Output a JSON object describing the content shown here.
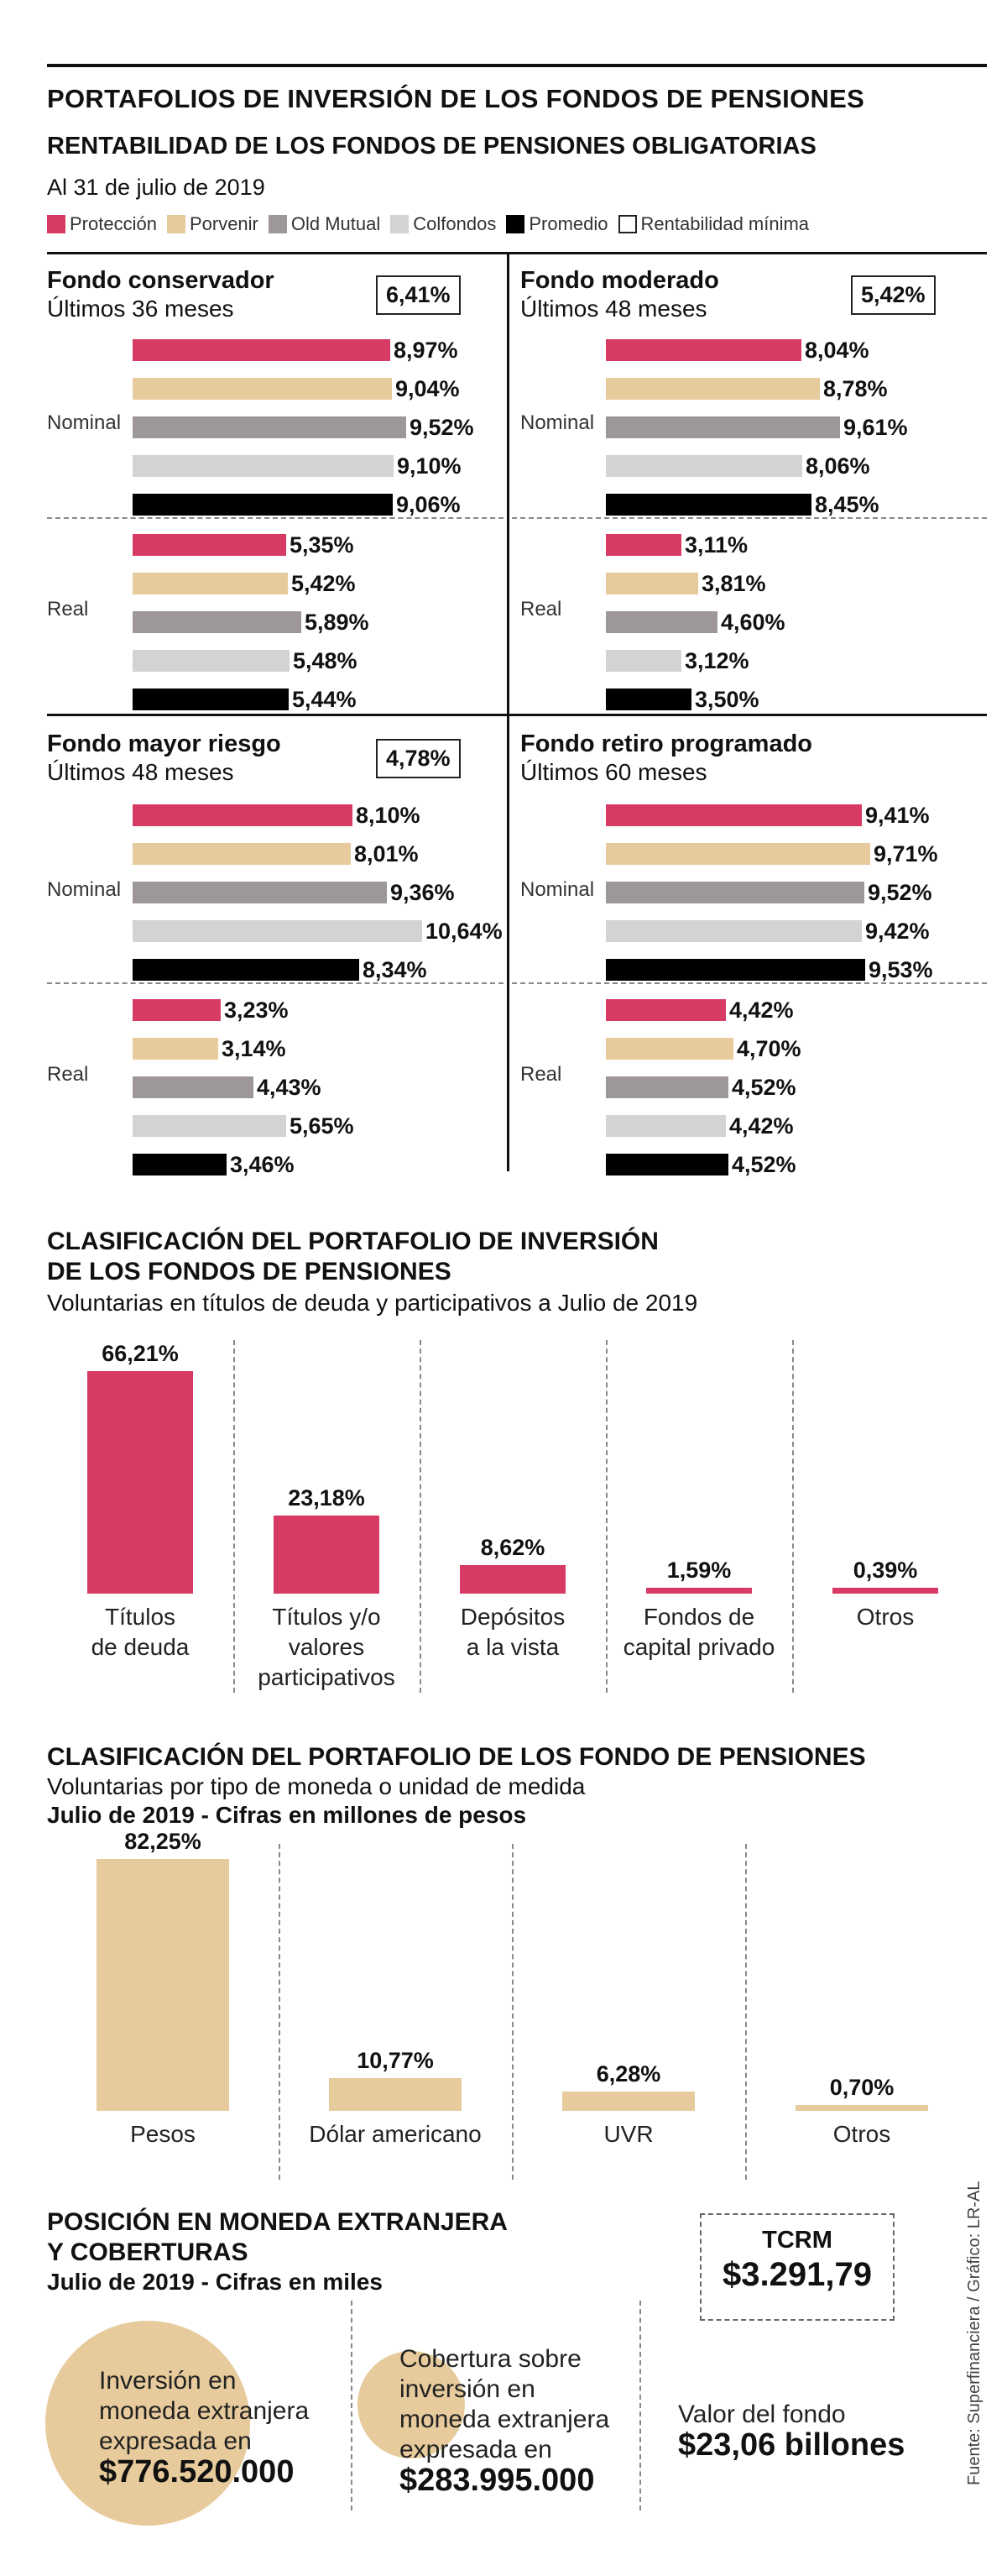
{
  "header": {
    "title": "PORTAFOLIOS DE INVERSIÓN DE LOS FONDOS DE PENSIONES",
    "subtitle": "RENTABILIDAD DE LOS FONDOS DE PENSIONES OBLIGATORIAS",
    "date": "Al 31 de julio de 2019"
  },
  "legend": [
    {
      "label": "Protección",
      "color": "#d73b63"
    },
    {
      "label": "Porvenir",
      "color": "#e7cb9c"
    },
    {
      "label": "Old Mutual",
      "color": "#9d9797"
    },
    {
      "label": "Colfondos",
      "color": "#d3d3d3"
    },
    {
      "label": "Promedio",
      "color": "#000000"
    },
    {
      "label": "Rentabilidad mínima",
      "color": "#ffffff"
    }
  ],
  "row_labels": {
    "nominal": "Nominal",
    "real": "Real"
  },
  "chart_data": [
    {
      "type": "bar",
      "title": "Fondo conservador",
      "subtitle": "Últimos 36 meses",
      "min_return": "6,41%",
      "categories": [
        "Protección",
        "Porvenir",
        "Old Mutual",
        "Colfondos",
        "Promedio"
      ],
      "series": [
        {
          "name": "Nominal",
          "values": [
            8.97,
            9.04,
            9.52,
            9.1,
            9.06
          ],
          "labels": [
            "8,97%",
            "9,04%",
            "9,52%",
            "9,10%",
            "9,06%"
          ]
        },
        {
          "name": "Real",
          "values": [
            5.35,
            5.42,
            5.89,
            5.48,
            5.44
          ],
          "labels": [
            "5,35%",
            "5,42%",
            "5,89%",
            "5,48%",
            "5,44%"
          ]
        }
      ]
    },
    {
      "type": "bar",
      "title": "Fondo moderado",
      "subtitle": "Últimos 48 meses",
      "min_return": "5,42%",
      "categories": [
        "Protección",
        "Porvenir",
        "Old Mutual",
        "Colfondos",
        "Promedio"
      ],
      "series": [
        {
          "name": "Nominal",
          "values": [
            8.04,
            8.78,
            9.61,
            8.06,
            8.45
          ],
          "labels": [
            "8,04%",
            "8,78%",
            "9,61%",
            "8,06%",
            "8,45%"
          ]
        },
        {
          "name": "Real",
          "values": [
            3.11,
            3.81,
            4.6,
            3.12,
            3.5
          ],
          "labels": [
            "3,11%",
            "3,81%",
            "4,60%",
            "3,12%",
            "3,50%"
          ]
        }
      ]
    },
    {
      "type": "bar",
      "title": "Fondo mayor riesgo",
      "subtitle": "Últimos 48 meses",
      "min_return": "4,78%",
      "categories": [
        "Protección",
        "Porvenir",
        "Old Mutual",
        "Colfondos",
        "Promedio"
      ],
      "series": [
        {
          "name": "Nominal",
          "values": [
            8.1,
            8.01,
            9.36,
            10.64,
            8.34
          ],
          "labels": [
            "8,10%",
            "8,01%",
            "9,36%",
            "10,64%",
            "8,34%"
          ]
        },
        {
          "name": "Real",
          "values": [
            3.23,
            3.14,
            4.43,
            5.65,
            3.46
          ],
          "labels": [
            "3,23%",
            "3,14%",
            "4,43%",
            "5,65%",
            "3,46%"
          ]
        }
      ]
    },
    {
      "type": "bar",
      "title": "Fondo retiro programado",
      "subtitle": "Últimos 60 meses",
      "min_return": null,
      "categories": [
        "Protección",
        "Porvenir",
        "Old Mutual",
        "Colfondos",
        "Promedio"
      ],
      "series": [
        {
          "name": "Nominal",
          "values": [
            9.41,
            9.71,
            9.52,
            9.42,
            9.53
          ],
          "labels": [
            "9,41%",
            "9,71%",
            "9,52%",
            "9,42%",
            "9,53%"
          ]
        },
        {
          "name": "Real",
          "values": [
            4.42,
            4.7,
            4.52,
            4.42,
            4.52
          ],
          "labels": [
            "4,42%",
            "4,70%",
            "4,52%",
            "4,42%",
            "4,52%"
          ]
        }
      ]
    },
    {
      "type": "bar",
      "title": "CLASIFICACIÓN DEL PORTAFOLIO DE INVERSIÓN DE LOS FONDOS DE PENSIONES",
      "title_lines": [
        "CLASIFICACIÓN DEL PORTAFOLIO DE INVERSIÓN",
        "DE LOS FONDOS DE PENSIONES"
      ],
      "subtitle": "Voluntarias en títulos de deuda y participativos a Julio de 2019",
      "color": "#d73b63",
      "categories": [
        [
          "Títulos",
          "de deuda"
        ],
        [
          "Títulos y/o",
          "valores",
          "participativos"
        ],
        [
          "Depósitos",
          "a la vista"
        ],
        [
          "Fondos de",
          "capital privado"
        ],
        [
          "Otros"
        ]
      ],
      "values": [
        66.21,
        23.18,
        8.62,
        1.59,
        0.39
      ],
      "labels": [
        "66,21%",
        "23,18%",
        "8,62%",
        "1,59%",
        "0,39%"
      ]
    },
    {
      "type": "bar",
      "title": "CLASIFICACIÓN DEL PORTAFOLIO DE LOS FONDO DE PENSIONES",
      "subtitle_lines": [
        "Voluntarias por tipo de moneda o unidad de medida",
        "Julio de 2019 - Cifras en millones de pesos"
      ],
      "color": "#e7cb9c",
      "categories": [
        [
          "Pesos"
        ],
        [
          "Dólar americano"
        ],
        [
          "UVR"
        ],
        [
          "Otros"
        ]
      ],
      "values": [
        82.25,
        10.77,
        6.28,
        0.7
      ],
      "labels": [
        "82,25%",
        "10,77%",
        "6,28%",
        "0,70%"
      ]
    }
  ],
  "position": {
    "title_lines": [
      "POSICIÓN EN MONEDA EXTRANJERA",
      "Y COBERTURAS"
    ],
    "subtitle": "Julio de 2019 - Cifras en miles",
    "tcrm_label": "TCRM",
    "tcrm_value": "$3.291,79",
    "investment": {
      "text_lines": [
        "Inversión en",
        "moneda extranjera",
        "expresada en"
      ],
      "value": "$776.520.000",
      "amount": 776520000
    },
    "coverage": {
      "text_lines": [
        "Cobertura sobre",
        "inversión en",
        "moneda extranjera",
        "expresada en"
      ],
      "value": "$283.995.000",
      "amount": 283995000
    },
    "fund": {
      "label": "Valor del fondo",
      "value": "$23,06 billones"
    }
  },
  "source": "Fuente: Superfinanciera / Gráfico: LR-AL"
}
